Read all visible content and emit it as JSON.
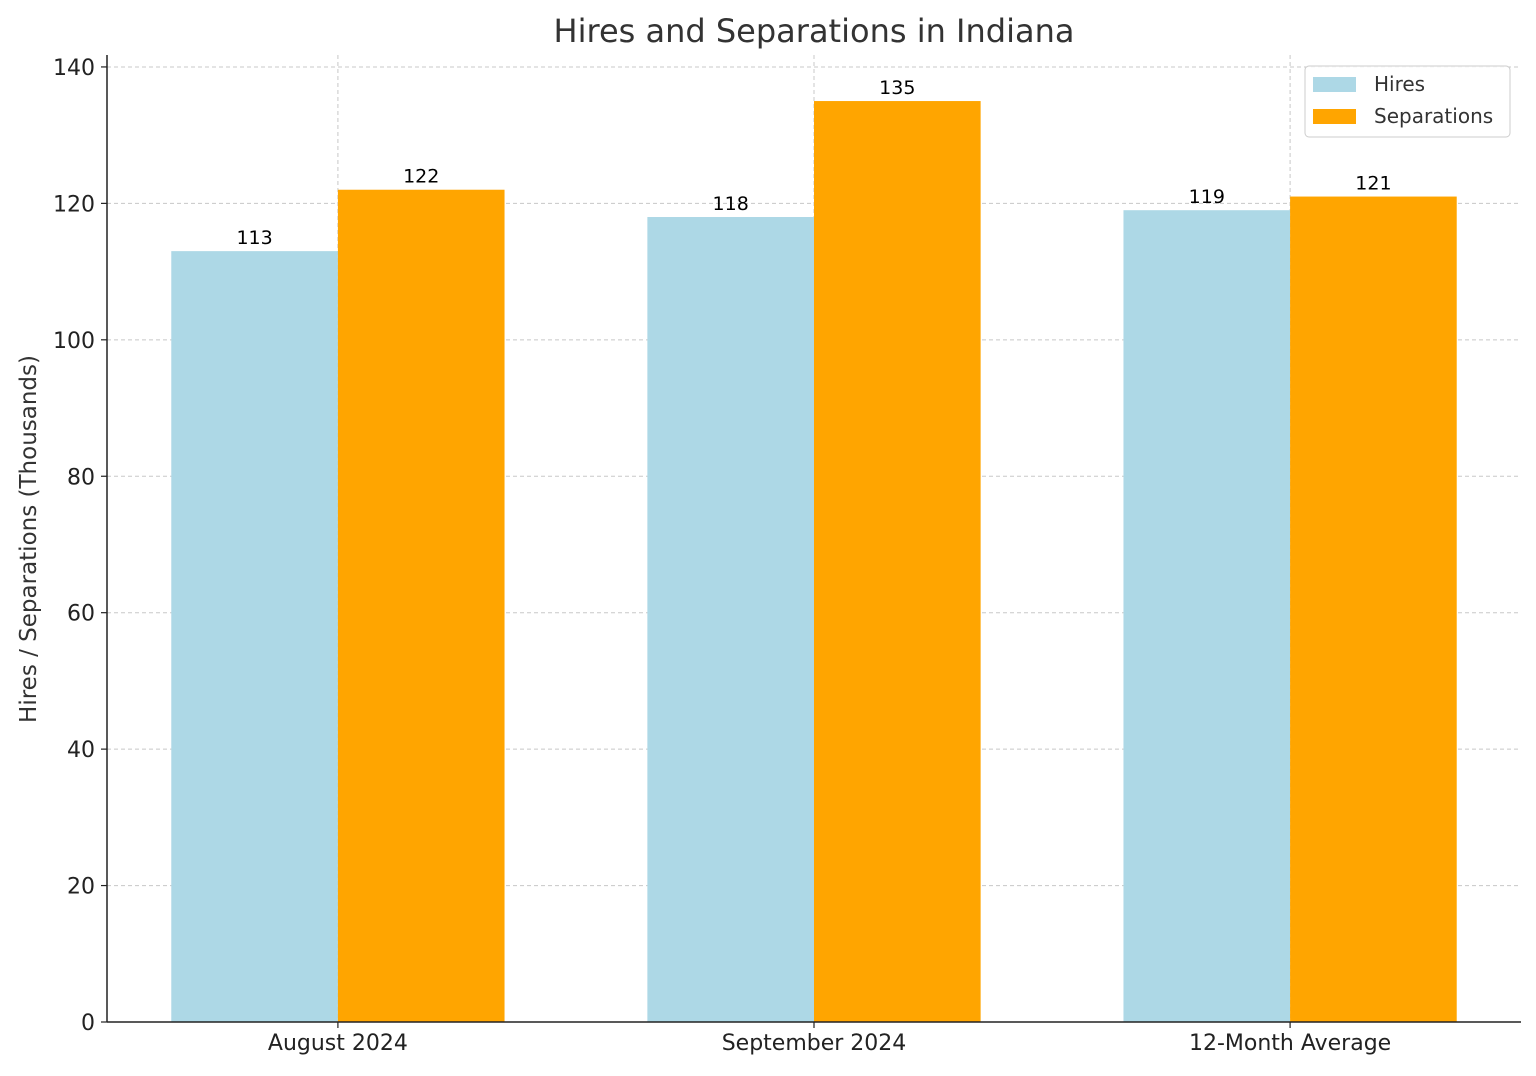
{
  "chart_data": {
    "type": "bar",
    "title": "Hires and Separations in Indiana",
    "xlabel": "",
    "ylabel": "Hires / Separations (Thousands)",
    "categories": [
      "August 2024",
      "September 2024",
      "12-Month Average"
    ],
    "series": [
      {
        "name": "Hires",
        "values": [
          113,
          118,
          119
        ],
        "color": "#add8e6"
      },
      {
        "name": "Separations",
        "values": [
          122,
          135,
          121
        ],
        "color": "#ffa500"
      }
    ],
    "ylim": [
      0,
      141.75
    ],
    "yticks": [
      0,
      20,
      40,
      60,
      80,
      100,
      120,
      140
    ],
    "grid": true,
    "legend_position": "top-right",
    "data_labels": true
  }
}
